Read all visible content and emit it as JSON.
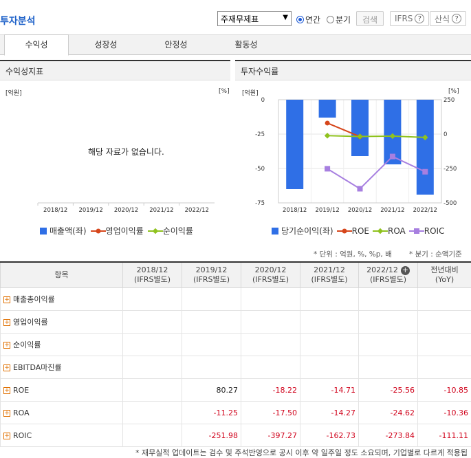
{
  "header": {
    "title": "투자분석",
    "report_select": "주재무제표",
    "period_options": [
      {
        "label": "연간",
        "selected": true
      },
      {
        "label": "분기",
        "selected": false
      }
    ],
    "search_label": "검색",
    "ifrs_label": "IFRS",
    "calc_label": "산식"
  },
  "tabs": [
    "수익성",
    "성장성",
    "안정성",
    "활동성"
  ],
  "left_panel": {
    "title": "수익성지표",
    "unit_left": "[억원]",
    "unit_right": "[%]",
    "no_data": "해당 자료가 없습니다.",
    "legend": [
      {
        "label": "매출액(좌)",
        "color": "#2f6fe6",
        "shape": "square"
      },
      {
        "label": "영업이익률",
        "color": "#d6461b",
        "shape": "line-dot"
      },
      {
        "label": "순이익률",
        "color": "#8fc21e",
        "shape": "line-dot"
      }
    ]
  },
  "right_panel": {
    "title": "투자수익률",
    "unit_left": "[억원]",
    "unit_right": "[%]",
    "legend": [
      {
        "label": "당기순이익(좌)",
        "color": "#2f6fe6",
        "shape": "square"
      },
      {
        "label": "ROE",
        "color": "#d6461b",
        "shape": "line-dot"
      },
      {
        "label": "ROA",
        "color": "#8fc21e",
        "shape": "line-dot"
      },
      {
        "label": "ROIC",
        "color": "#a77fe0",
        "shape": "line-dot"
      }
    ]
  },
  "chart_data": [
    {
      "type": "line",
      "categories": [
        "2018/12",
        "2019/12",
        "2020/12",
        "2021/12",
        "2022/12"
      ],
      "series": []
    },
    {
      "type": "bar",
      "categories": [
        "2018/12",
        "2019/12",
        "2020/12",
        "2021/12",
        "2022/12"
      ],
      "left_axis": {
        "ticks": [
          "0",
          "-25",
          "-50",
          "-75"
        ],
        "ylim": [
          -75,
          0
        ]
      },
      "right_axis": {
        "ticks": [
          "250",
          "0",
          "-250",
          "-500"
        ],
        "ylim": [
          -500,
          250
        ]
      },
      "series": [
        {
          "name": "당기순이익(좌)",
          "type": "bar",
          "axis": "left",
          "values": [
            -65,
            -13,
            -41,
            -47,
            -69
          ]
        },
        {
          "name": "ROE",
          "type": "line",
          "axis": "right",
          "values": [
            null,
            80.27,
            -18.22,
            null,
            null
          ]
        },
        {
          "name": "ROA",
          "type": "line",
          "axis": "right",
          "values": [
            null,
            -11.25,
            -17.5,
            -14.27,
            -24.62
          ]
        },
        {
          "name": "ROIC",
          "type": "line",
          "axis": "right",
          "values": [
            null,
            -251.98,
            -397.27,
            -162.73,
            -273.84
          ]
        }
      ]
    }
  ],
  "notes": {
    "unit": "* 단위 : 억원, %, %p, 배",
    "quarter": "* 분기 : 순액기준",
    "footnote": "* 재무실적 업데이트는 검수 및 주석반영으로 공시 이후 약 일주일 정도 소요되며, 기업별로 다르게 적용됩"
  },
  "table": {
    "header_item": "항목",
    "periods": [
      {
        "year": "2018/12",
        "sub": "(IFRS별도)"
      },
      {
        "year": "2019/12",
        "sub": "(IFRS별도)"
      },
      {
        "year": "2020/12",
        "sub": "(IFRS별도)"
      },
      {
        "year": "2021/12",
        "sub": "(IFRS별도)"
      },
      {
        "year": "2022/12",
        "sub": "(IFRS별도)"
      }
    ],
    "yoy": {
      "line1": "전년대비",
      "line2": "(YoY)"
    },
    "rows": [
      {
        "label": "매출총이익률",
        "values": [
          "",
          "",
          "",
          "",
          "",
          ""
        ]
      },
      {
        "label": "영업이익률",
        "values": [
          "",
          "",
          "",
          "",
          "",
          ""
        ]
      },
      {
        "label": "순이익률",
        "values": [
          "",
          "",
          "",
          "",
          "",
          ""
        ]
      },
      {
        "label": "EBITDA마진률",
        "values": [
          "",
          "",
          "",
          "",
          "",
          ""
        ]
      },
      {
        "label": "ROE",
        "values": [
          "",
          "80.27",
          "-18.22",
          "-14.71",
          "-25.56",
          "-10.85"
        ]
      },
      {
        "label": "ROA",
        "values": [
          "",
          "-11.25",
          "-17.50",
          "-14.27",
          "-24.62",
          "-10.36"
        ]
      },
      {
        "label": "ROIC",
        "values": [
          "",
          "-251.98",
          "-397.27",
          "-162.73",
          "-273.84",
          "-111.11"
        ]
      }
    ]
  }
}
